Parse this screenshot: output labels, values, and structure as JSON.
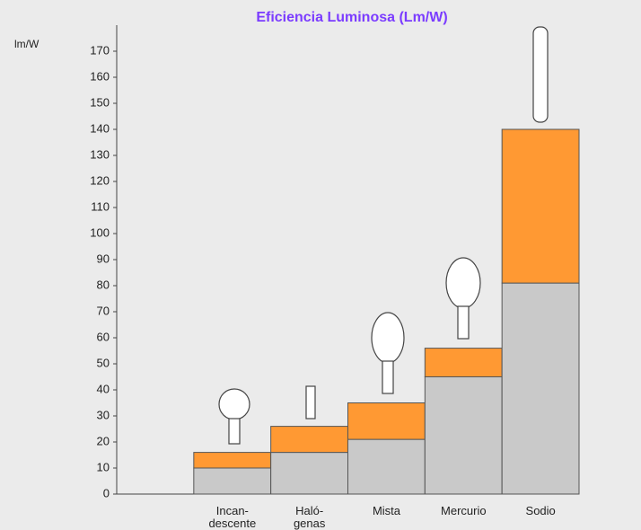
{
  "chart_data": {
    "type": "bar",
    "stacked": true,
    "title": "Eficiencia Luminosa (Lm/W)",
    "y_label": "lm/W",
    "categories": [
      null,
      "Incan-\ndescente",
      "Haló-\ngenas",
      "Mista",
      "Mercurio",
      "Sodio"
    ],
    "series": [
      {
        "color": "#c9c9c9",
        "values": [
          null,
          10,
          16,
          21,
          45,
          81
        ]
      },
      {
        "color": "#ff9933",
        "values": [
          null,
          6,
          10,
          14,
          11,
          59
        ]
      }
    ],
    "ylim": [
      0,
      180
    ],
    "yticks": [
      0,
      10,
      20,
      30,
      40,
      50,
      60,
      70,
      80,
      90,
      100,
      110,
      120,
      130,
      140,
      150,
      160,
      170
    ]
  }
}
